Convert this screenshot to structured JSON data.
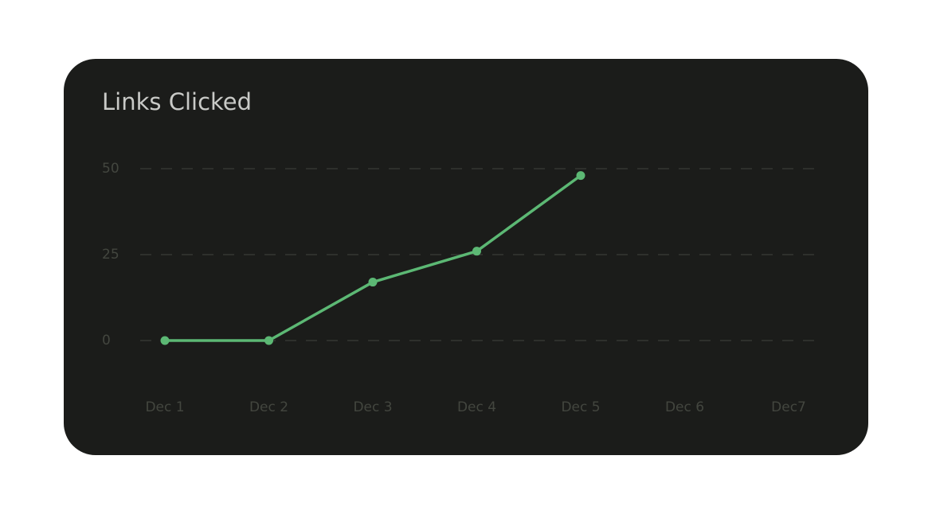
{
  "chart_data": {
    "type": "line",
    "title": "Links Clicked",
    "categories": [
      "Dec 1",
      "Dec 2",
      "Dec 3",
      "Dec 4",
      "Dec 5",
      "Dec 6",
      "Dec7"
    ],
    "series": [
      {
        "name": "Links Clicked",
        "color": "#5cb874",
        "values": [
          0,
          0,
          17,
          26,
          48,
          null,
          null
        ]
      }
    ],
    "ylim": [
      0,
      50
    ],
    "yticks": [
      0,
      25,
      50
    ],
    "grid": true
  }
}
